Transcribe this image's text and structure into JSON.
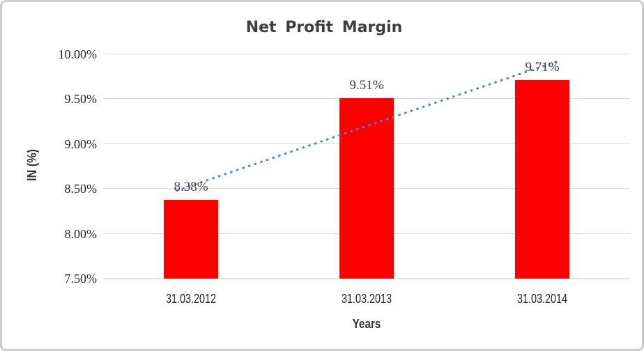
{
  "window": {
    "background": "#ffffff",
    "border_color": "#cccccc"
  },
  "chart_data": {
    "type": "bar",
    "title": "Net Profit Margin",
    "xlabel": "Years",
    "ylabel": "IN (%)",
    "categories": [
      "31.03.2012",
      "31.03.2013",
      "31.03.2014"
    ],
    "values": [
      8.38,
      9.51,
      9.71
    ],
    "data_labels": [
      "8.38%",
      "9.51%",
      "9.71%"
    ],
    "ylim": [
      7.5,
      10.0
    ],
    "y_ticks": [
      {
        "value": 10.0,
        "label": "10.00%"
      },
      {
        "value": 9.5,
        "label": "9.50%"
      },
      {
        "value": 9.0,
        "label": "9.00%"
      },
      {
        "value": 8.5,
        "label": "8.50%"
      },
      {
        "value": 8.0,
        "label": "8.00%"
      },
      {
        "value": 7.5,
        "label": "7.50%"
      }
    ],
    "grid": true,
    "legend": "none",
    "bar_color": "#ff0000",
    "gridline_color": "#d9d9d9",
    "axis_line_color": "#c0c0c0",
    "label_color": "#404040",
    "trendline": {
      "type": "linear",
      "style": "dotted",
      "color": "#4a86c8"
    }
  }
}
